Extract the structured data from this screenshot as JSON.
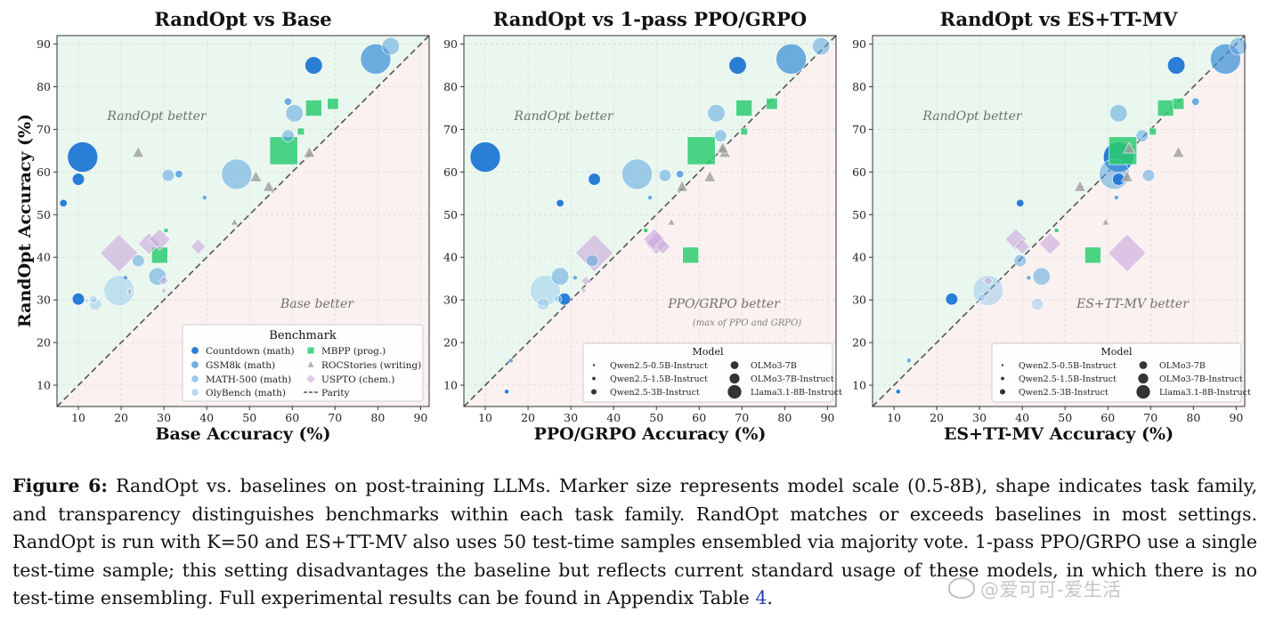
{
  "figure": {
    "y_label": "RandOpt Accuracy (%)",
    "ticks": [
      10,
      20,
      30,
      40,
      50,
      60,
      70,
      80,
      90
    ]
  },
  "chart_data": [
    {
      "type": "scatter",
      "title": "RandOpt vs Base",
      "xlabel": "Base Accuracy (%)",
      "ylabel": "RandOpt Accuracy (%)",
      "xlim": [
        5,
        92
      ],
      "ylim": [
        5,
        92
      ],
      "better_label": "Base better",
      "better_sub": "",
      "randopt_label": "RandOpt better",
      "legend_type": "benchmark",
      "points": [
        {
          "x": 11,
          "y": 63.5,
          "b": "countdown",
          "s": 5
        },
        {
          "x": 10,
          "y": 58.3,
          "b": "countdown",
          "s": 2
        },
        {
          "x": 6.5,
          "y": 52.7,
          "b": "countdown",
          "s": 1
        },
        {
          "x": 10,
          "y": 30.2,
          "b": "countdown",
          "s": 2
        },
        {
          "x": 65,
          "y": 85,
          "b": "countdown",
          "s": 3
        },
        {
          "x": 79.5,
          "y": 86.5,
          "b": "gsm8k",
          "s": 5
        },
        {
          "x": 59,
          "y": 76.5,
          "b": "gsm8k",
          "s": 1
        },
        {
          "x": 33.5,
          "y": 59.5,
          "b": "gsm8k",
          "s": 1
        },
        {
          "x": 39.5,
          "y": 54,
          "b": "gsm8k",
          "s": 0
        },
        {
          "x": 22,
          "y": 32,
          "b": "gsm8k",
          "s": 0
        },
        {
          "x": 21,
          "y": 35.2,
          "b": "gsm8k",
          "s": 0
        },
        {
          "x": 83,
          "y": 89.5,
          "b": "math",
          "s": 3
        },
        {
          "x": 60.5,
          "y": 73.8,
          "b": "math",
          "s": 3
        },
        {
          "x": 47,
          "y": 59.5,
          "b": "math",
          "s": 5
        },
        {
          "x": 31,
          "y": 59.2,
          "b": "math",
          "s": 2
        },
        {
          "x": 59,
          "y": 68.5,
          "b": "math",
          "s": 2
        },
        {
          "x": 24,
          "y": 39.2,
          "b": "math",
          "s": 2
        },
        {
          "x": 28.5,
          "y": 35.5,
          "b": "math",
          "s": 3
        },
        {
          "x": 19.5,
          "y": 32.2,
          "b": "oly",
          "s": 5
        },
        {
          "x": 14,
          "y": 29,
          "b": "oly",
          "s": 2
        },
        {
          "x": 13.5,
          "y": 30.2,
          "b": "oly",
          "s": 1
        },
        {
          "x": 12,
          "y": 29.8,
          "b": "oly",
          "s": 0
        },
        {
          "x": 58,
          "y": 65,
          "b": "mbpp",
          "s": 5
        },
        {
          "x": 65,
          "y": 75,
          "b": "mbpp",
          "s": 3
        },
        {
          "x": 69.5,
          "y": 76,
          "b": "mbpp",
          "s": 2
        },
        {
          "x": 62,
          "y": 69.5,
          "b": "mbpp",
          "s": 1
        },
        {
          "x": 29,
          "y": 40.5,
          "b": "mbpp",
          "s": 3
        },
        {
          "x": 30.5,
          "y": 46.3,
          "b": "mbpp",
          "s": 0
        },
        {
          "x": 24,
          "y": 64.5,
          "b": "roc",
          "s": 2
        },
        {
          "x": 64,
          "y": 64.5,
          "b": "roc",
          "s": 2
        },
        {
          "x": 51.5,
          "y": 58.8,
          "b": "roc",
          "s": 2
        },
        {
          "x": 54.5,
          "y": 56.5,
          "b": "roc",
          "s": 2
        },
        {
          "x": 46.5,
          "y": 48.2,
          "b": "roc",
          "s": 1
        },
        {
          "x": 22,
          "y": 32.2,
          "b": "roc",
          "s": 0
        },
        {
          "x": 19.5,
          "y": 41,
          "b": "uspto",
          "s": 5
        },
        {
          "x": 26.5,
          "y": 43.2,
          "b": "uspto",
          "s": 3
        },
        {
          "x": 29,
          "y": 44.2,
          "b": "uspto",
          "s": 3
        },
        {
          "x": 38,
          "y": 42.5,
          "b": "uspto",
          "s": 2
        },
        {
          "x": 30,
          "y": 34.5,
          "b": "uspto",
          "s": 1
        },
        {
          "x": 30,
          "y": 32.2,
          "b": "uspto",
          "s": 0
        }
      ]
    },
    {
      "type": "scatter",
      "title": "RandOpt vs 1-pass PPO/GRPO",
      "xlabel": "PPO/GRPO Accuracy (%)",
      "ylabel": "RandOpt Accuracy (%)",
      "xlim": [
        5,
        92
      ],
      "ylim": [
        5,
        92
      ],
      "better_label": "PPO/GRPO better",
      "better_sub": "(max of PPO and GRPO)",
      "randopt_label": "RandOpt better",
      "legend_type": "model",
      "points": [
        {
          "x": 10,
          "y": 63.5,
          "b": "countdown",
          "s": 5
        },
        {
          "x": 35.5,
          "y": 58.3,
          "b": "countdown",
          "s": 2
        },
        {
          "x": 27.5,
          "y": 52.7,
          "b": "countdown",
          "s": 1
        },
        {
          "x": 28.5,
          "y": 30.2,
          "b": "countdown",
          "s": 2
        },
        {
          "x": 69,
          "y": 85,
          "b": "countdown",
          "s": 3
        },
        {
          "x": 15,
          "y": 8.5,
          "b": "countdown",
          "s": 0
        },
        {
          "x": 81.5,
          "y": 86.5,
          "b": "gsm8k",
          "s": 5
        },
        {
          "x": 55.5,
          "y": 59.5,
          "b": "gsm8k",
          "s": 1
        },
        {
          "x": 48.5,
          "y": 54,
          "b": "gsm8k",
          "s": 0
        },
        {
          "x": 31,
          "y": 35.2,
          "b": "gsm8k",
          "s": 0
        },
        {
          "x": 16,
          "y": 15.8,
          "b": "gsm8k",
          "s": 0
        },
        {
          "x": 88.5,
          "y": 89.5,
          "b": "math",
          "s": 3
        },
        {
          "x": 64,
          "y": 73.8,
          "b": "math",
          "s": 3
        },
        {
          "x": 45.5,
          "y": 59.5,
          "b": "math",
          "s": 5
        },
        {
          "x": 52,
          "y": 59.2,
          "b": "math",
          "s": 2
        },
        {
          "x": 65,
          "y": 68.5,
          "b": "math",
          "s": 2
        },
        {
          "x": 35,
          "y": 39.2,
          "b": "math",
          "s": 2
        },
        {
          "x": 27.5,
          "y": 35.5,
          "b": "math",
          "s": 3
        },
        {
          "x": 24,
          "y": 32.2,
          "b": "oly",
          "s": 5
        },
        {
          "x": 23.5,
          "y": 29,
          "b": "oly",
          "s": 2
        },
        {
          "x": 27,
          "y": 30.2,
          "b": "oly",
          "s": 1
        },
        {
          "x": 60.5,
          "y": 65,
          "b": "mbpp",
          "s": 5
        },
        {
          "x": 70.5,
          "y": 75,
          "b": "mbpp",
          "s": 3
        },
        {
          "x": 77,
          "y": 76,
          "b": "mbpp",
          "s": 2
        },
        {
          "x": 70.5,
          "y": 69.5,
          "b": "mbpp",
          "s": 1
        },
        {
          "x": 58,
          "y": 40.5,
          "b": "mbpp",
          "s": 3
        },
        {
          "x": 47.5,
          "y": 46.3,
          "b": "mbpp",
          "s": 0
        },
        {
          "x": 66,
          "y": 64.5,
          "b": "roc",
          "s": 2
        },
        {
          "x": 65.5,
          "y": 65.5,
          "b": "roc",
          "s": 2
        },
        {
          "x": 62.5,
          "y": 58.8,
          "b": "roc",
          "s": 2
        },
        {
          "x": 56,
          "y": 56.5,
          "b": "roc",
          "s": 2
        },
        {
          "x": 53.5,
          "y": 48.2,
          "b": "roc",
          "s": 1
        },
        {
          "x": 35.5,
          "y": 41,
          "b": "uspto",
          "s": 5
        },
        {
          "x": 50,
          "y": 43.2,
          "b": "uspto",
          "s": 3
        },
        {
          "x": 49.5,
          "y": 44.2,
          "b": "uspto",
          "s": 3
        },
        {
          "x": 51.5,
          "y": 42.5,
          "b": "uspto",
          "s": 2
        },
        {
          "x": 33.5,
          "y": 34.5,
          "b": "uspto",
          "s": 1
        },
        {
          "x": 33,
          "y": 32.2,
          "b": "uspto",
          "s": 0
        }
      ]
    },
    {
      "type": "scatter",
      "title": "RandOpt vs ES+TT-MV",
      "xlabel": "ES+TT-MV Accuracy (%)",
      "ylabel": "RandOpt Accuracy (%)",
      "xlim": [
        5,
        92
      ],
      "ylim": [
        5,
        92
      ],
      "better_label": "ES+TT-MV better",
      "better_sub": "",
      "randopt_label": "RandOpt better",
      "legend_type": "model",
      "points": [
        {
          "x": 62.5,
          "y": 63.5,
          "b": "countdown",
          "s": 5
        },
        {
          "x": 62.5,
          "y": 58.3,
          "b": "countdown",
          "s": 2
        },
        {
          "x": 39.5,
          "y": 52.7,
          "b": "countdown",
          "s": 1
        },
        {
          "x": 23.5,
          "y": 30.2,
          "b": "countdown",
          "s": 2
        },
        {
          "x": 76,
          "y": 85,
          "b": "countdown",
          "s": 3
        },
        {
          "x": 11,
          "y": 8.5,
          "b": "countdown",
          "s": 0
        },
        {
          "x": 87.5,
          "y": 86.5,
          "b": "gsm8k",
          "s": 5
        },
        {
          "x": 80.5,
          "y": 76.5,
          "b": "gsm8k",
          "s": 1
        },
        {
          "x": 62,
          "y": 54,
          "b": "gsm8k",
          "s": 0
        },
        {
          "x": 41.5,
          "y": 35.2,
          "b": "gsm8k",
          "s": 0
        },
        {
          "x": 13.5,
          "y": 15.8,
          "b": "gsm8k",
          "s": 0
        },
        {
          "x": 90.5,
          "y": 89.5,
          "b": "math",
          "s": 3
        },
        {
          "x": 62.5,
          "y": 73.8,
          "b": "math",
          "s": 3
        },
        {
          "x": 61.5,
          "y": 59.5,
          "b": "math",
          "s": 5
        },
        {
          "x": 69.5,
          "y": 59.2,
          "b": "math",
          "s": 2
        },
        {
          "x": 68,
          "y": 68.5,
          "b": "math",
          "s": 2
        },
        {
          "x": 39.5,
          "y": 39.2,
          "b": "math",
          "s": 2
        },
        {
          "x": 44.5,
          "y": 35.5,
          "b": "math",
          "s": 3
        },
        {
          "x": 32,
          "y": 32.2,
          "b": "oly",
          "s": 5
        },
        {
          "x": 43.5,
          "y": 29,
          "b": "oly",
          "s": 2
        },
        {
          "x": 30.5,
          "y": 30.5,
          "b": "oly",
          "s": 1
        },
        {
          "x": 63.5,
          "y": 65,
          "b": "mbpp",
          "s": 5
        },
        {
          "x": 73.5,
          "y": 75,
          "b": "mbpp",
          "s": 3
        },
        {
          "x": 76.5,
          "y": 76,
          "b": "mbpp",
          "s": 2
        },
        {
          "x": 70.5,
          "y": 69.5,
          "b": "mbpp",
          "s": 1
        },
        {
          "x": 56.5,
          "y": 40.5,
          "b": "mbpp",
          "s": 3
        },
        {
          "x": 48,
          "y": 46.3,
          "b": "mbpp",
          "s": 0
        },
        {
          "x": 76.5,
          "y": 64.5,
          "b": "roc",
          "s": 2
        },
        {
          "x": 65,
          "y": 65.5,
          "b": "roc",
          "s": 2
        },
        {
          "x": 64.5,
          "y": 58.8,
          "b": "roc",
          "s": 2
        },
        {
          "x": 53.5,
          "y": 56.5,
          "b": "roc",
          "s": 2
        },
        {
          "x": 59.5,
          "y": 48.2,
          "b": "roc",
          "s": 1
        },
        {
          "x": 64.5,
          "y": 41,
          "b": "uspto",
          "s": 5
        },
        {
          "x": 38.5,
          "y": 44.2,
          "b": "uspto",
          "s": 3
        },
        {
          "x": 46.5,
          "y": 43.2,
          "b": "uspto",
          "s": 3
        },
        {
          "x": 40,
          "y": 42.5,
          "b": "uspto",
          "s": 2
        },
        {
          "x": 32,
          "y": 34.5,
          "b": "uspto",
          "s": 1
        }
      ]
    }
  ],
  "benchmarks": [
    {
      "key": "countdown",
      "label": "Countdown (math)",
      "color": "#1f77d4",
      "shape": "circle",
      "alpha": 0.95
    },
    {
      "key": "gsm8k",
      "label": "GSM8k (math)",
      "color": "#3a8fd8",
      "shape": "circle",
      "alpha": 0.72
    },
    {
      "key": "math",
      "label": "MATH-500 (math)",
      "color": "#5aa6e0",
      "shape": "circle",
      "alpha": 0.55
    },
    {
      "key": "oly",
      "label": "OlyBench (math)",
      "color": "#8cc3ec",
      "shape": "circle",
      "alpha": 0.45
    },
    {
      "key": "mbpp",
      "label": "MBPP (prog.)",
      "color": "#2ecc71",
      "shape": "square",
      "alpha": 0.85
    },
    {
      "key": "roc",
      "label": "ROCStories (writing)",
      "color": "#9e9e9e",
      "shape": "triangle",
      "alpha": 0.8
    },
    {
      "key": "uspto",
      "label": "USPTO (chem.)",
      "color": "#c9a6dc",
      "shape": "diamond",
      "alpha": 0.6
    }
  ],
  "legend_benchmark": {
    "title": "Benchmark",
    "parity_label": "Parity"
  },
  "legend_model": {
    "title": "Model",
    "items": [
      {
        "label": "Qwen2.5-0.5B-Instruct",
        "s": 0
      },
      {
        "label": "Qwen2.5-1.5B-Instruct",
        "s": 1
      },
      {
        "label": "Qwen2.5-3B-Instruct",
        "s": 2
      },
      {
        "label": "OLMo3-7B",
        "s": 3
      },
      {
        "label": "OLMo3-7B-Instruct",
        "s": 4
      },
      {
        "label": "Llama3.1-8B-Instruct",
        "s": 5
      }
    ]
  },
  "colors": {
    "randopt_region": "#e9f7ee",
    "baseline_region": "#fbf1f1",
    "grid": "#d9d9d9",
    "parity": "#555555"
  },
  "caption": {
    "label": "Figure 6:",
    "text": " RandOpt vs. baselines on post-training LLMs. Marker size represents model scale (0.5-8B), shape indicates task family, and transparency distinguishes benchmarks within each task family. RandOpt matches or exceeds baselines in most settings. RandOpt is run with K=50 and ES+TT-MV also uses 50 test-time samples ensembled via majority vote. 1-pass PPO/GRPO use a single test-time sample; this setting disadvantages the baseline but reflects current standard usage of these models, in which there is no test-time ensembling. Full experimental results can be found in Appendix Table ",
    "ref": "4",
    "end": "."
  },
  "watermark": {
    "text": "@爱可可-爱生活"
  }
}
